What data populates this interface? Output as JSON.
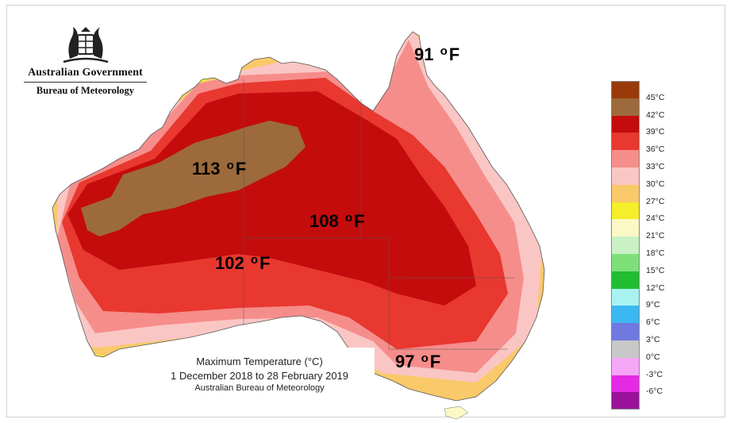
{
  "logo": {
    "line1": "Australian Government",
    "line2": "Bureau of Meteorology"
  },
  "map_labels": [
    {
      "text": "113",
      "unit": "F",
      "color": "#ffffff"
    },
    {
      "text": "108",
      "unit": "F",
      "color": "#ffffff"
    },
    {
      "text": "102",
      "unit": "F",
      "color": "#ffffff"
    },
    {
      "text": "91",
      "unit": "F",
      "color": "#7a0d0d"
    },
    {
      "text": "97",
      "unit": "F",
      "color": "#7a0d0d"
    }
  ],
  "degree_symbol": "o",
  "caption": {
    "title": "Maximum Temperature (°C)",
    "period": "1 December 2018 to 28 February 2019",
    "source": "Australian Bureau of Meteorology"
  },
  "legend": [
    {
      "label": "45°C",
      "color": "#9a3a0b"
    },
    {
      "label": "42°C",
      "color": "#9c6a3c"
    },
    {
      "label": "39°C",
      "color": "#c40c0c"
    },
    {
      "label": "36°C",
      "color": "#e8382f"
    },
    {
      "label": "33°C",
      "color": "#f58d8b"
    },
    {
      "label": "30°C",
      "color": "#fac6c4"
    },
    {
      "label": "27°C",
      "color": "#f9c96a"
    },
    {
      "label": "24°C",
      "color": "#f4ef2a"
    },
    {
      "label": "21°C",
      "color": "#fbf8c6"
    },
    {
      "label": "18°C",
      "color": "#c9f1c4"
    },
    {
      "label": "15°C",
      "color": "#7fe07a"
    },
    {
      "label": "12°C",
      "color": "#22bd32"
    },
    {
      "label": "9°C",
      "color": "#a9f2f2"
    },
    {
      "label": "6°C",
      "color": "#3cb8f0"
    },
    {
      "label": "3°C",
      "color": "#6f79e0"
    },
    {
      "label": "0°C",
      "color": "#c8c8c8"
    },
    {
      "label": "-3°C",
      "color": "#f6a6f6"
    },
    {
      "label": "-6°C",
      "color": "#e52ae5"
    },
    {
      "label": "",
      "color": "#9a129a"
    }
  ],
  "colors": {
    "ocean": "#ffffff",
    "border": "#555555"
  }
}
